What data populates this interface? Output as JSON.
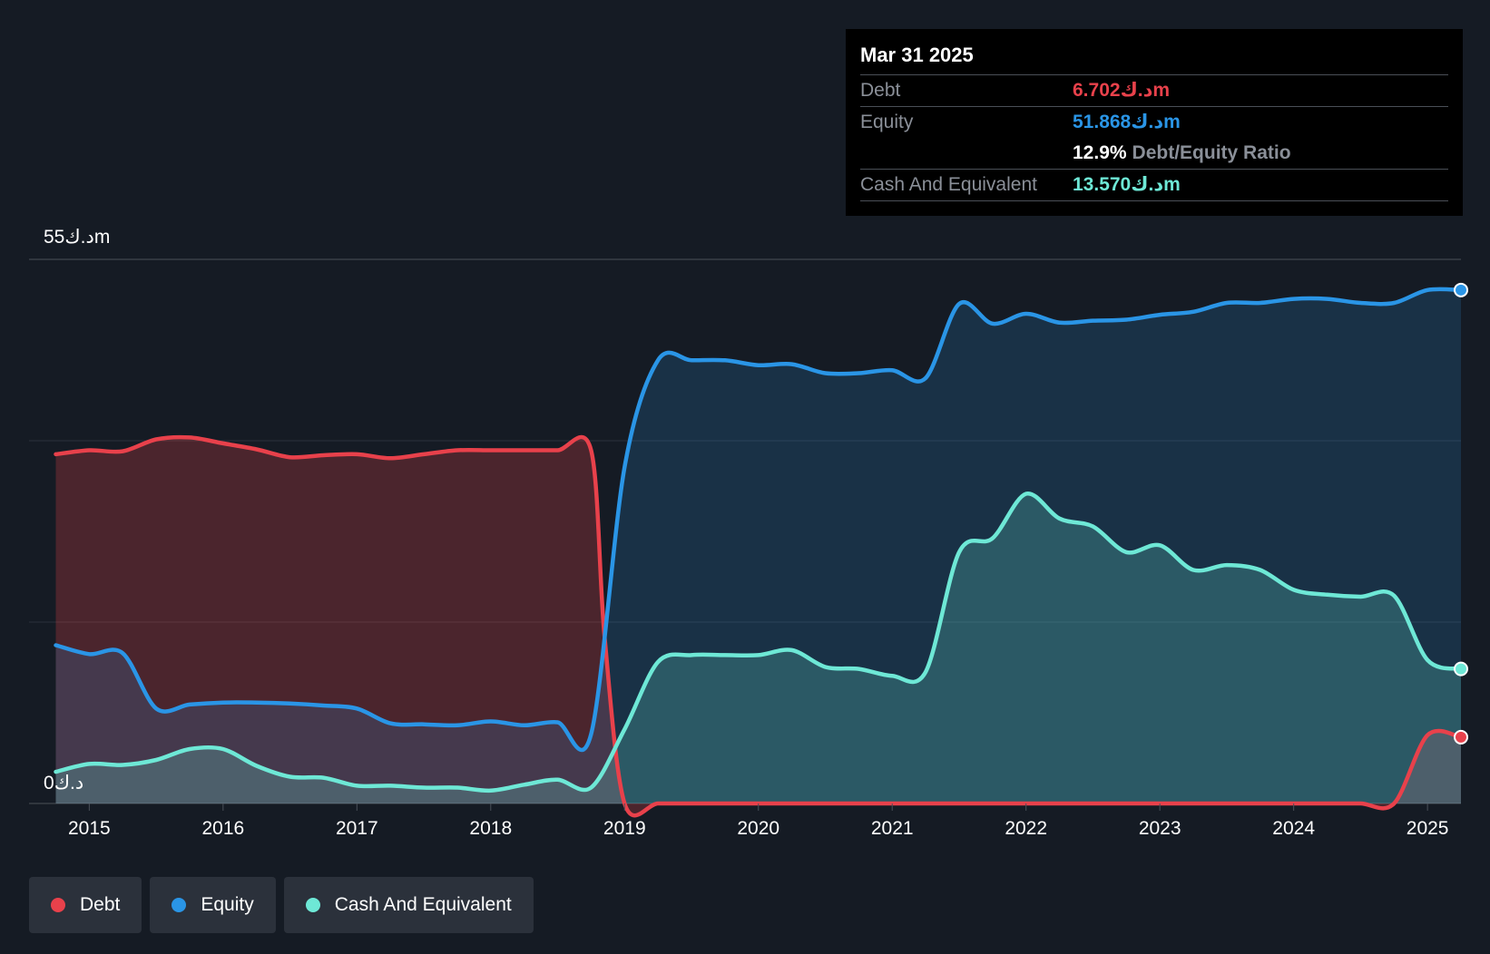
{
  "tooltip": {
    "date": "Mar 31 2025",
    "debt_label": "Debt",
    "debt_value": "6.702د.كm",
    "equity_label": "Equity",
    "equity_value": "51.868د.كm",
    "ratio_value": "12.9%",
    "ratio_label": "Debt/Equity Ratio",
    "cash_label": "Cash And Equivalent",
    "cash_value": "13.570د.كm"
  },
  "legend": [
    {
      "label": "Debt",
      "color": "#e8414b"
    },
    {
      "label": "Equity",
      "color": "#2a95e6"
    },
    {
      "label": "Cash And Equivalent",
      "color": "#6ee8d6"
    }
  ],
  "colors": {
    "debt": "#e8414b",
    "equity": "#2a95e6",
    "cash": "#6ee8d6",
    "background": "#151b24"
  },
  "chart_data": {
    "type": "area",
    "ylabel_top": "55د.كm",
    "ylabel_bottom": "0د.ك",
    "ylim": [
      0,
      55
    ],
    "xlim": [
      2014.55,
      2025.25
    ],
    "x_ticks": [
      "2015",
      "2016",
      "2017",
      "2018",
      "2019",
      "2020",
      "2021",
      "2022",
      "2023",
      "2024",
      "2025"
    ],
    "grid": true,
    "series": [
      {
        "name": "Debt",
        "x": [
          2014.75,
          2015.0,
          2015.25,
          2015.5,
          2015.75,
          2016.0,
          2016.25,
          2016.5,
          2016.75,
          2017.0,
          2017.25,
          2017.5,
          2017.75,
          2018.0,
          2018.25,
          2018.5,
          2018.75,
          2018.85,
          2019.0,
          2019.25,
          2019.5,
          2019.75,
          2020.0,
          2020.25,
          2020.5,
          2020.75,
          2021.0,
          2021.25,
          2021.5,
          2021.75,
          2022.0,
          2022.25,
          2022.5,
          2022.75,
          2023.0,
          2023.25,
          2023.5,
          2023.75,
          2024.0,
          2024.25,
          2024.5,
          2024.75,
          2025.0,
          2025.25
        ],
        "values": [
          35.3,
          35.7,
          35.6,
          36.8,
          37.0,
          36.4,
          35.8,
          35.0,
          35.2,
          35.3,
          34.9,
          35.3,
          35.7,
          35.7,
          35.7,
          35.7,
          35.7,
          17.0,
          0.0,
          0.0,
          0.0,
          0.0,
          0.0,
          0.0,
          0.0,
          0.0,
          0.0,
          0.0,
          0.0,
          0.0,
          0.0,
          0.0,
          0.0,
          0.0,
          0.0,
          0.0,
          0.0,
          0.0,
          0.0,
          0.0,
          0.0,
          0.0,
          6.9,
          6.7
        ]
      },
      {
        "name": "Equity",
        "x": [
          2014.75,
          2015.0,
          2015.25,
          2015.5,
          2015.75,
          2016.0,
          2016.25,
          2016.5,
          2016.75,
          2017.0,
          2017.25,
          2017.5,
          2017.75,
          2018.0,
          2018.25,
          2018.5,
          2018.75,
          2019.0,
          2019.25,
          2019.5,
          2019.75,
          2020.0,
          2020.25,
          2020.5,
          2020.75,
          2021.0,
          2021.25,
          2021.5,
          2021.75,
          2022.0,
          2022.25,
          2022.5,
          2022.75,
          2023.0,
          2023.25,
          2023.5,
          2023.75,
          2024.0,
          2024.25,
          2024.5,
          2024.75,
          2025.0,
          2025.25
        ],
        "values": [
          16.0,
          15.1,
          15.2,
          9.6,
          10.0,
          10.2,
          10.2,
          10.1,
          9.9,
          9.6,
          8.1,
          8.0,
          7.9,
          8.3,
          7.9,
          8.2,
          7.0,
          34.0,
          44.8,
          44.8,
          44.8,
          44.3,
          44.4,
          43.5,
          43.5,
          43.8,
          43.0,
          50.5,
          48.5,
          49.5,
          48.6,
          48.8,
          48.9,
          49.4,
          49.7,
          50.6,
          50.6,
          51.0,
          51.0,
          50.6,
          50.6,
          51.9,
          51.9
        ]
      },
      {
        "name": "Cash And Equivalent",
        "x": [
          2014.75,
          2015.0,
          2015.25,
          2015.5,
          2015.75,
          2016.0,
          2016.25,
          2016.5,
          2016.75,
          2017.0,
          2017.25,
          2017.5,
          2017.75,
          2018.0,
          2018.25,
          2018.5,
          2018.75,
          2019.0,
          2019.25,
          2019.5,
          2019.75,
          2020.0,
          2020.25,
          2020.5,
          2020.75,
          2021.0,
          2021.25,
          2021.5,
          2021.75,
          2022.0,
          2022.25,
          2022.5,
          2022.75,
          2023.0,
          2023.25,
          2023.5,
          2023.75,
          2024.0,
          2024.25,
          2024.5,
          2024.75,
          2025.0,
          2025.25
        ],
        "values": [
          3.2,
          4.0,
          3.9,
          4.4,
          5.5,
          5.5,
          3.8,
          2.7,
          2.6,
          1.8,
          1.8,
          1.6,
          1.6,
          1.3,
          1.9,
          2.4,
          1.6,
          7.5,
          14.3,
          15.0,
          15.0,
          15.0,
          15.5,
          13.8,
          13.6,
          12.9,
          13.3,
          25.4,
          26.8,
          31.3,
          28.8,
          28.0,
          25.4,
          26.1,
          23.6,
          24.1,
          23.6,
          21.6,
          21.1,
          20.9,
          21.0,
          14.5,
          13.6
        ]
      }
    ]
  }
}
